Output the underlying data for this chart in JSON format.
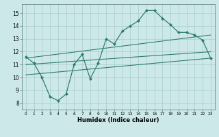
{
  "xlabel": "Humidex (Indice chaleur)",
  "xlim": [
    -0.5,
    23.5
  ],
  "ylim": [
    7.5,
    15.7
  ],
  "background_color": "#cce8e8",
  "grid_color": "#aacccc",
  "line_color": "#2e7d6e",
  "line1_x": [
    0,
    1,
    2,
    3,
    4,
    5,
    6,
    7,
    8,
    9,
    10,
    11,
    12,
    13,
    14,
    15,
    16,
    17,
    18,
    19,
    20,
    21,
    22,
    23
  ],
  "line1_y": [
    11.6,
    11.1,
    10.0,
    8.5,
    8.2,
    8.7,
    11.0,
    11.8,
    9.9,
    11.1,
    13.0,
    12.6,
    13.6,
    14.0,
    14.4,
    15.2,
    15.2,
    14.6,
    14.1,
    13.5,
    13.5,
    13.3,
    12.9,
    11.5
  ],
  "line2_x": [
    0,
    23
  ],
  "line2_y": [
    11.5,
    13.3
  ],
  "line3_x": [
    0,
    23
  ],
  "line3_y": [
    11.0,
    12.0
  ],
  "line4_x": [
    0,
    23
  ],
  "line4_y": [
    10.2,
    11.5
  ],
  "yticks": [
    8,
    9,
    10,
    11,
    12,
    13,
    14,
    15
  ],
  "xticks": [
    0,
    1,
    2,
    3,
    4,
    5,
    6,
    7,
    8,
    9,
    10,
    11,
    12,
    13,
    14,
    15,
    16,
    17,
    18,
    19,
    20,
    21,
    22,
    23
  ]
}
